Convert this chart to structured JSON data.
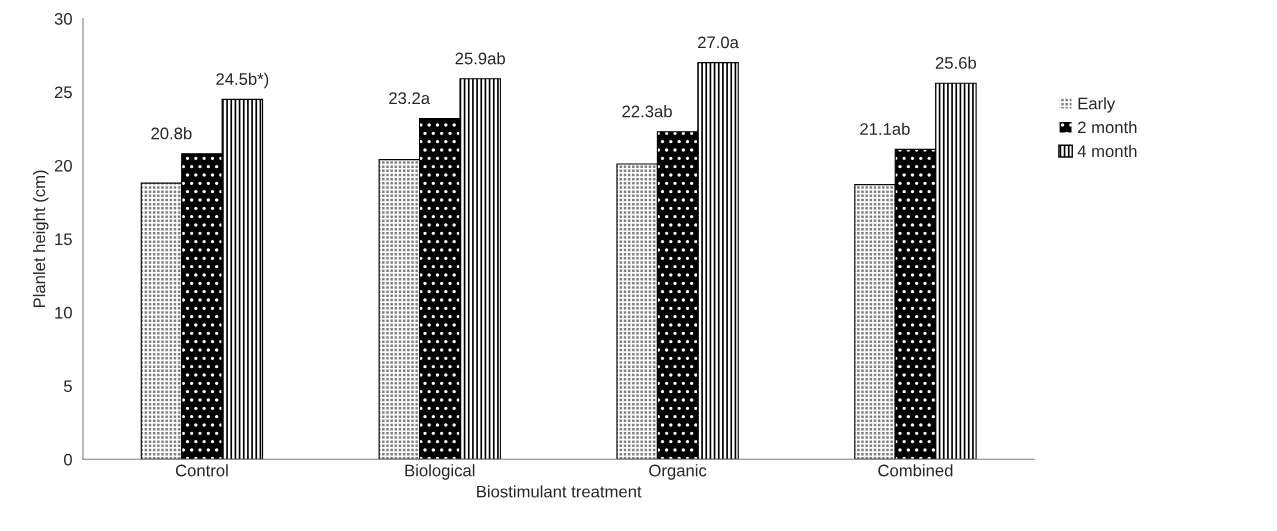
{
  "chart_data": {
    "type": "bar",
    "xlabel": "Biostimulant treatment",
    "ylabel": "Planlet height (cm)",
    "categories": [
      "Control",
      "Biological",
      "Organic",
      "Combined"
    ],
    "series": [
      {
        "name": "Early",
        "color": "#808080",
        "values": [
          18.8,
          20.4,
          20.1,
          18.7
        ]
      },
      {
        "name": "2 month",
        "color": "#000000",
        "values": [
          20.8,
          23.2,
          22.3,
          21.1
        ],
        "value_labels": [
          "20.8b",
          "23.2a",
          "22.3ab",
          "21.1ab"
        ]
      },
      {
        "name": "4 month",
        "color": "#ffffff",
        "values": [
          24.5,
          25.9,
          27.0,
          25.6
        ],
        "value_labels": [
          "24.5b*)",
          "25.9ab",
          "27.0a",
          "25.6b"
        ]
      }
    ],
    "ylim": [
      0,
      30
    ],
    "yticks": [
      0,
      5,
      10,
      15,
      20,
      25,
      30
    ],
    "grid": false,
    "legend": "right"
  }
}
